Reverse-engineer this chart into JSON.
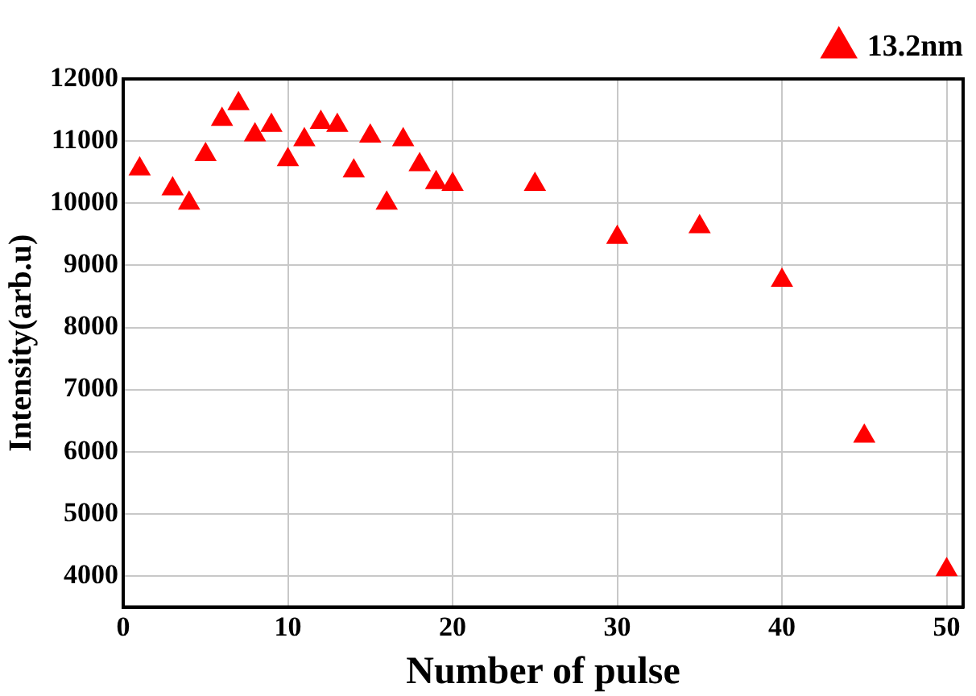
{
  "chart_data": {
    "type": "scatter",
    "xlabel": "Number of pulse",
    "ylabel": "Intensity(arb.u)",
    "x": [
      1,
      3,
      4,
      5,
      6,
      7,
      8,
      9,
      10,
      11,
      12,
      13,
      14,
      15,
      16,
      17,
      18,
      19,
      20,
      25,
      30,
      35,
      40,
      45,
      50
    ],
    "series": [
      {
        "name": "13.2nm",
        "color": "#ff0000",
        "values": [
          10550,
          10230,
          10000,
          10780,
          11350,
          11600,
          11100,
          11250,
          10700,
          11020,
          11300,
          11250,
          10520,
          11080,
          10000,
          11020,
          10620,
          10330,
          10300,
          10300,
          9450,
          9620,
          8760,
          6250,
          4100
        ]
      }
    ],
    "xlim": [
      0,
      51
    ],
    "xticks": [
      0,
      10,
      20,
      30,
      40,
      50
    ],
    "ylim": [
      3500,
      12000
    ],
    "yticks": [
      4000,
      5000,
      6000,
      7000,
      8000,
      9000,
      10000,
      11000,
      12000
    ],
    "grid": true,
    "legend": "top right",
    "marker": "triangle"
  }
}
